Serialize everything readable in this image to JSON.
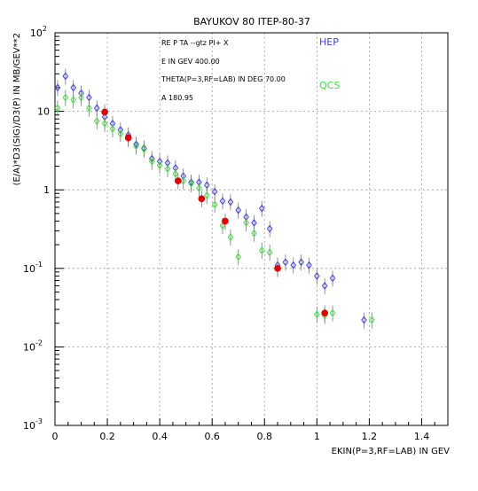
{
  "chart_data": {
    "type": "scatter",
    "title": "BAYUKOV 80    ITEP-80-37",
    "xlabel": "EKIN(P=3,RF=LAB) IN GEV",
    "ylabel": "(E/A)*D3(SIG)/D3(P) IN MB/GEV**2",
    "xlim": [
      0,
      1.5
    ],
    "ylim": [
      0.001,
      100
    ],
    "yscale": "log",
    "grid": true,
    "x_ticks": [
      "0",
      "0.2",
      "0.4",
      "0.6",
      "0.8",
      "1",
      "1.2",
      "1.4"
    ],
    "y_ticks": [
      {
        "base": "10",
        "exp": "2"
      },
      {
        "base": "10",
        "exp": ""
      },
      {
        "base": "1",
        "exp": ""
      },
      {
        "base": "10",
        "exp": "-1"
      },
      {
        "base": "10",
        "exp": "-2"
      },
      {
        "base": "10",
        "exp": "-3"
      }
    ],
    "info_lines": [
      "RE   P TA --gtz PI+ X",
      "E IN GEV   400.00",
      "THETA(P=3,RF=LAB) IN DEG   70.00",
      "A   180.95"
    ],
    "series": [
      {
        "name": "HEP",
        "color": "#4040e0",
        "marker": "open-diamond",
        "points": [
          {
            "x": 0.01,
            "y": 20
          },
          {
            "x": 0.04,
            "y": 28
          },
          {
            "x": 0.07,
            "y": 20
          },
          {
            "x": 0.1,
            "y": 17
          },
          {
            "x": 0.13,
            "y": 15
          },
          {
            "x": 0.16,
            "y": 11
          },
          {
            "x": 0.19,
            "y": 8.5
          },
          {
            "x": 0.22,
            "y": 7
          },
          {
            "x": 0.25,
            "y": 5.8
          },
          {
            "x": 0.28,
            "y": 5
          },
          {
            "x": 0.31,
            "y": 3.8
          },
          {
            "x": 0.34,
            "y": 3.4
          },
          {
            "x": 0.37,
            "y": 2.5
          },
          {
            "x": 0.4,
            "y": 2.3
          },
          {
            "x": 0.43,
            "y": 2.2
          },
          {
            "x": 0.46,
            "y": 1.9
          },
          {
            "x": 0.49,
            "y": 1.5
          },
          {
            "x": 0.52,
            "y": 1.25
          },
          {
            "x": 0.55,
            "y": 1.25
          },
          {
            "x": 0.58,
            "y": 1.15
          },
          {
            "x": 0.61,
            "y": 0.95
          },
          {
            "x": 0.64,
            "y": 0.72
          },
          {
            "x": 0.67,
            "y": 0.7
          },
          {
            "x": 0.7,
            "y": 0.55
          },
          {
            "x": 0.73,
            "y": 0.45
          },
          {
            "x": 0.76,
            "y": 0.38
          },
          {
            "x": 0.79,
            "y": 0.58
          },
          {
            "x": 0.82,
            "y": 0.32
          },
          {
            "x": 0.85,
            "y": 0.11
          },
          {
            "x": 0.88,
            "y": 0.12
          },
          {
            "x": 0.91,
            "y": 0.11
          },
          {
            "x": 0.94,
            "y": 0.12
          },
          {
            "x": 0.97,
            "y": 0.11
          },
          {
            "x": 1.0,
            "y": 0.08
          },
          {
            "x": 1.03,
            "y": 0.06
          },
          {
            "x": 1.06,
            "y": 0.075
          },
          {
            "x": 1.18,
            "y": 0.022
          }
        ]
      },
      {
        "name": "QCS",
        "color": "#40e040",
        "marker": "open-diamond",
        "points": [
          {
            "x": 0.01,
            "y": 11
          },
          {
            "x": 0.04,
            "y": 15
          },
          {
            "x": 0.07,
            "y": 14
          },
          {
            "x": 0.1,
            "y": 15
          },
          {
            "x": 0.13,
            "y": 11
          },
          {
            "x": 0.16,
            "y": 7.5
          },
          {
            "x": 0.19,
            "y": 7
          },
          {
            "x": 0.22,
            "y": 6
          },
          {
            "x": 0.25,
            "y": 5.2
          },
          {
            "x": 0.28,
            "y": 4.5
          },
          {
            "x": 0.31,
            "y": 3.6
          },
          {
            "x": 0.34,
            "y": 3.3
          },
          {
            "x": 0.37,
            "y": 2.3
          },
          {
            "x": 0.4,
            "y": 2.05
          },
          {
            "x": 0.43,
            "y": 1.85
          },
          {
            "x": 0.46,
            "y": 1.6
          },
          {
            "x": 0.49,
            "y": 1.3
          },
          {
            "x": 0.52,
            "y": 1.2
          },
          {
            "x": 0.55,
            "y": 1.05
          },
          {
            "x": 0.58,
            "y": 0.85
          },
          {
            "x": 0.61,
            "y": 0.65
          },
          {
            "x": 0.64,
            "y": 0.35
          },
          {
            "x": 0.67,
            "y": 0.25
          },
          {
            "x": 0.7,
            "y": 0.14
          },
          {
            "x": 0.73,
            "y": 0.38
          },
          {
            "x": 0.76,
            "y": 0.28
          },
          {
            "x": 0.79,
            "y": 0.17
          },
          {
            "x": 0.82,
            "y": 0.16
          },
          {
            "x": 0.85,
            "y": 0.1
          },
          {
            "x": 1.0,
            "y": 0.026
          },
          {
            "x": 1.03,
            "y": 0.025
          },
          {
            "x": 1.06,
            "y": 0.027
          },
          {
            "x": 1.21,
            "y": 0.022
          }
        ]
      },
      {
        "name": "",
        "color": "#e00000",
        "marker": "filled-circle",
        "points": [
          {
            "x": 0.19,
            "y": 9.8
          },
          {
            "x": 0.28,
            "y": 4.6
          },
          {
            "x": 0.47,
            "y": 1.3
          },
          {
            "x": 0.56,
            "y": 0.77
          },
          {
            "x": 0.65,
            "y": 0.4
          },
          {
            "x": 0.85,
            "y": 0.1
          },
          {
            "x": 1.03,
            "y": 0.027
          }
        ]
      }
    ]
  }
}
